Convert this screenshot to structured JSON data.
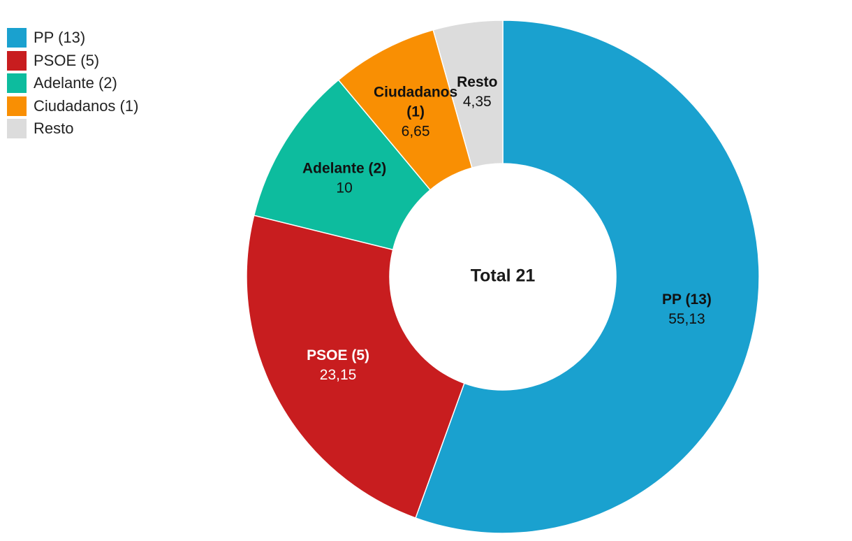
{
  "chart_data": {
    "type": "pie",
    "center_label": "Total 21",
    "legend_position": "top-left",
    "series": [
      {
        "name": "PP (13)",
        "value": 55.13,
        "value_label": "55,13",
        "color": "#1aa1cf",
        "label_color": "#111111"
      },
      {
        "name": "PSOE (5)",
        "value": 23.15,
        "value_label": "23,15",
        "color": "#c81d1f",
        "label_color": "#ffffff"
      },
      {
        "name": "Adelante (2)",
        "value": 10,
        "value_label": "10",
        "color": "#0dbc9e",
        "label_color": "#111111"
      },
      {
        "name": "Ciudadanos (1)",
        "value": 6.65,
        "value_label": "6,65",
        "color": "#f98f03",
        "label_color": "#111111"
      },
      {
        "name": "Resto",
        "value": 4.35,
        "value_label": "4,35",
        "color": "#dcdcdc",
        "label_color": "#111111"
      }
    ]
  }
}
